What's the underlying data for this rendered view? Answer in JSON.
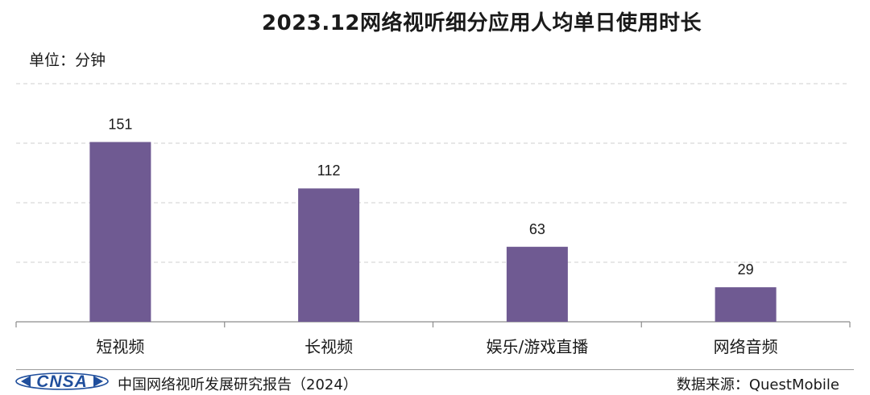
{
  "header": {
    "title": "2023.12网络视听细分应用人均单日使用时长",
    "unit": "单位：分钟"
  },
  "chart_data": {
    "type": "bar",
    "categories": [
      "短视频",
      "长视频",
      "娱乐/游戏直播",
      "网络音频"
    ],
    "values": [
      151,
      112,
      63,
      29
    ],
    "ylim": [
      0,
      200
    ],
    "grid": true,
    "bar_color": "#6f5a92"
  },
  "footer": {
    "logo_text": "CNSA",
    "report": "中国网络视听发展研究报告（2024）",
    "source": "数据来源：QuestMobile"
  },
  "colors": {
    "logo_blue": "#1f4e9c"
  }
}
